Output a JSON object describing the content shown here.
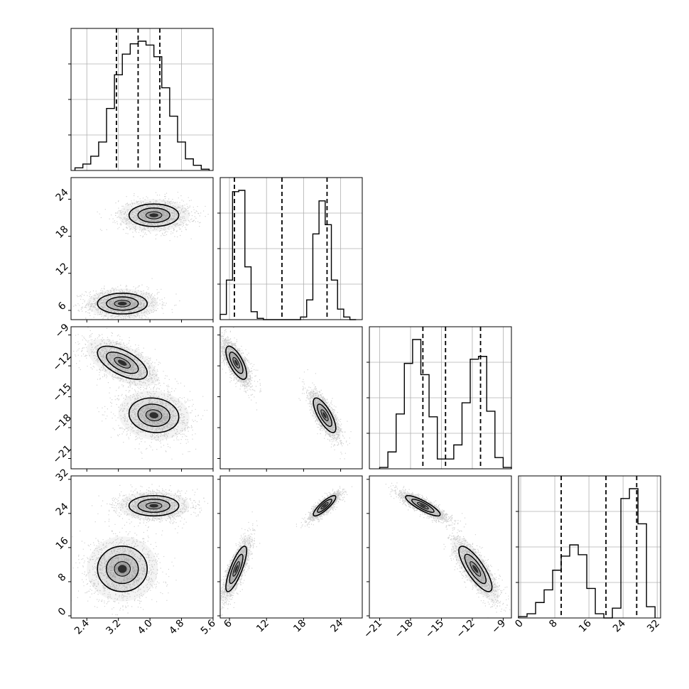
{
  "chart_data": {
    "type": "corner",
    "title": "",
    "grid": true,
    "colors": {
      "line": "#000000",
      "grid": "#b0b0b0",
      "scatter": "#000000",
      "contour_fill": "#606060"
    },
    "parameters": [
      {
        "index": 0,
        "xlabel": "",
        "range": [
          2.0,
          5.6
        ],
        "ticks": [
          "2.4",
          "3.2",
          "4.0",
          "4.8",
          "5.6"
        ],
        "tick_values": [
          2.4,
          3.2,
          4.0,
          4.8,
          5.6
        ],
        "quantiles": [
          3.15,
          3.7,
          4.25
        ]
      },
      {
        "index": 1,
        "xlabel": "",
        "range": [
          4.5,
          27.5
        ],
        "ticks": [
          "6",
          "12",
          "18",
          "24"
        ],
        "tick_values": [
          6,
          12,
          18,
          24
        ],
        "quantiles": [
          6.8,
          14.5,
          21.8
        ]
      },
      {
        "index": 2,
        "xlabel": "",
        "range": [
          -22.0,
          -8.2
        ],
        "ticks": [
          "−21",
          "−18",
          "−15",
          "−12",
          "−9"
        ],
        "tick_values": [
          -21,
          -18,
          -15,
          -12,
          -9
        ],
        "quantiles": [
          -16.8,
          -14.6,
          -11.2
        ]
      },
      {
        "index": 3,
        "xlabel": "",
        "range": [
          -0.5,
          32.8
        ],
        "ticks": [
          "0",
          "8",
          "16",
          "24",
          "32"
        ],
        "tick_values": [
          0,
          8,
          16,
          24,
          32
        ],
        "quantiles": [
          9.5,
          20.0,
          27.2
        ]
      }
    ],
    "marginal_histograms": [
      {
        "param": 0,
        "bin_edges": [
          2.1,
          2.3,
          2.5,
          2.7,
          2.9,
          3.1,
          3.3,
          3.5,
          3.7,
          3.9,
          4.1,
          4.3,
          4.5,
          4.7,
          4.9,
          5.1,
          5.3,
          5.5
        ],
        "counts": [
          2,
          5,
          11,
          22,
          48,
          74,
          90,
          98,
          100,
          97,
          88,
          64,
          42,
          22,
          9,
          4,
          1
        ]
      },
      {
        "param": 1,
        "bin_edges": [
          4.5,
          5.5,
          6.5,
          7.5,
          8.5,
          9.5,
          10.5,
          11.5,
          12.5,
          13.5,
          14.5,
          15.5,
          16.5,
          17.5,
          18.5,
          19.5,
          20.5,
          21.5,
          22.5,
          23.5,
          24.5,
          25.5,
          26.5
        ],
        "counts": [
          4,
          30,
          97,
          98,
          40,
          6,
          1,
          0,
          0,
          0,
          0,
          0,
          0,
          2,
          15,
          65,
          90,
          72,
          30,
          8,
          2,
          0
        ]
      },
      {
        "param": 2,
        "bin_edges": [
          -21.0,
          -20.2,
          -19.4,
          -18.6,
          -17.8,
          -17.0,
          -16.2,
          -15.4,
          -14.6,
          -13.8,
          -13.0,
          -12.2,
          -11.4,
          -10.6,
          -9.8,
          -9.0,
          -8.2
        ],
        "counts": [
          1,
          12,
          39,
          75,
          92,
          67,
          37,
          7,
          7,
          17,
          47,
          78,
          80,
          41,
          8,
          1
        ]
      },
      {
        "param": 3,
        "bin_edges": [
          -0.5,
          1.5,
          3.5,
          5.5,
          7.5,
          9.5,
          11.5,
          13.5,
          15.5,
          17.5,
          19.5,
          21.5,
          23.5,
          25.5,
          27.5,
          29.5,
          31.5
        ],
        "counts": [
          1,
          3,
          11,
          20,
          34,
          44,
          52,
          45,
          21,
          3,
          0,
          7,
          85,
          92,
          67,
          8
        ]
      }
    ],
    "components": [
      {
        "weight": 0.5,
        "mean": [
          3.3,
          7.1,
          -11.7,
          11.0
        ],
        "std": [
          0.45,
          1.2,
          1.15,
          3.8
        ]
      },
      {
        "weight": 0.5,
        "mean": [
          4.1,
          21.4,
          -16.8,
          25.8
        ],
        "std": [
          0.45,
          1.3,
          1.2,
          1.7
        ]
      }
    ],
    "pair_correlations": {
      "0-1": [
        0.0,
        0.0
      ],
      "0-2": [
        -0.6,
        -0.1
      ],
      "1-2": [
        -0.7,
        -0.75
      ],
      "0-3": [
        0.0,
        0.0
      ],
      "1-3": [
        0.8,
        0.85
      ],
      "2-3": [
        -0.8,
        -0.85
      ]
    }
  }
}
